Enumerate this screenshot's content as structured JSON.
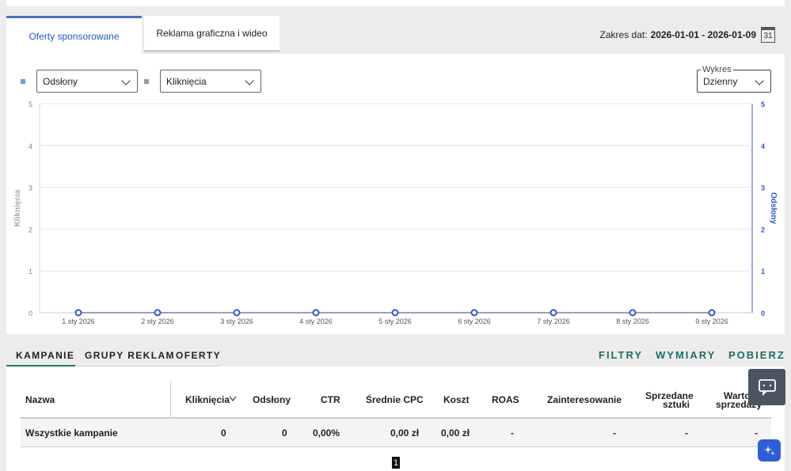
{
  "tabs": {
    "sponsored": "Oferty sponsorowane",
    "display": "Reklama graficzna i wideo"
  },
  "date_range": {
    "label": "Zakres dat:",
    "value": "2026-01-01 - 2026-01-09",
    "calendar_day": "31"
  },
  "selectors": {
    "metric1": "Odsłony",
    "metric2": "Kliknięcia",
    "chart_label": "Wykres",
    "chart_mode": "Dzienny"
  },
  "colors": {
    "series_impressions": "#2f55d4",
    "series_clicks": "#9aa0a6",
    "legend1": "#5aa0e0",
    "legend2": "#999999",
    "accent_green": "#1d6e63"
  },
  "chart_data": {
    "type": "line",
    "x": [
      "1 sty 2026",
      "2 sty 2026",
      "3 sty 2026",
      "4 sty 2026",
      "5 sty 2026",
      "6 sty 2026",
      "7 sty 2026",
      "8 sty 2026",
      "9 sty 2026"
    ],
    "series": [
      {
        "name": "Odsłony",
        "axis": "right",
        "values": [
          0,
          0,
          0,
          0,
          0,
          0,
          0,
          0,
          0
        ]
      },
      {
        "name": "Kliknięcia",
        "axis": "left",
        "values": [
          0,
          0,
          0,
          0,
          0,
          0,
          0,
          0,
          0
        ]
      }
    ],
    "ylabel_left": "Kliknięcia",
    "ylabel_right": "Odsłony",
    "yticks": [
      "0",
      "1",
      "2",
      "3",
      "4",
      "5"
    ],
    "ylim": [
      0,
      5
    ],
    "grid": true
  },
  "lower_tabs": [
    "KAMPANIE",
    "GRUPY REKLAM",
    "OFERTY"
  ],
  "actions": [
    "FILTRY",
    "WYMIARY",
    "POBIERZ"
  ],
  "table": {
    "headers": {
      "name": "Nazwa",
      "clicks": "Kliknięcia",
      "impressions": "Odsłony",
      "ctr": "CTR",
      "avg_cpc": "Średnie CPC",
      "cost": "Koszt",
      "roas": "ROAS",
      "interest": "Zainteresowanie",
      "sold_1": "Sprzedane",
      "sold_2": "sztuki",
      "value_1": "Warto",
      "value_2": "sprzedaży"
    },
    "row": {
      "name": "Wszystkie kampanie",
      "clicks": "0",
      "impressions": "0",
      "ctr": "0,00%",
      "avg_cpc": "0,00 zł",
      "cost": "0,00 zł",
      "roas": "-",
      "interest": "-",
      "sold": "-",
      "value": "-"
    }
  },
  "pagination": {
    "current": "1"
  }
}
